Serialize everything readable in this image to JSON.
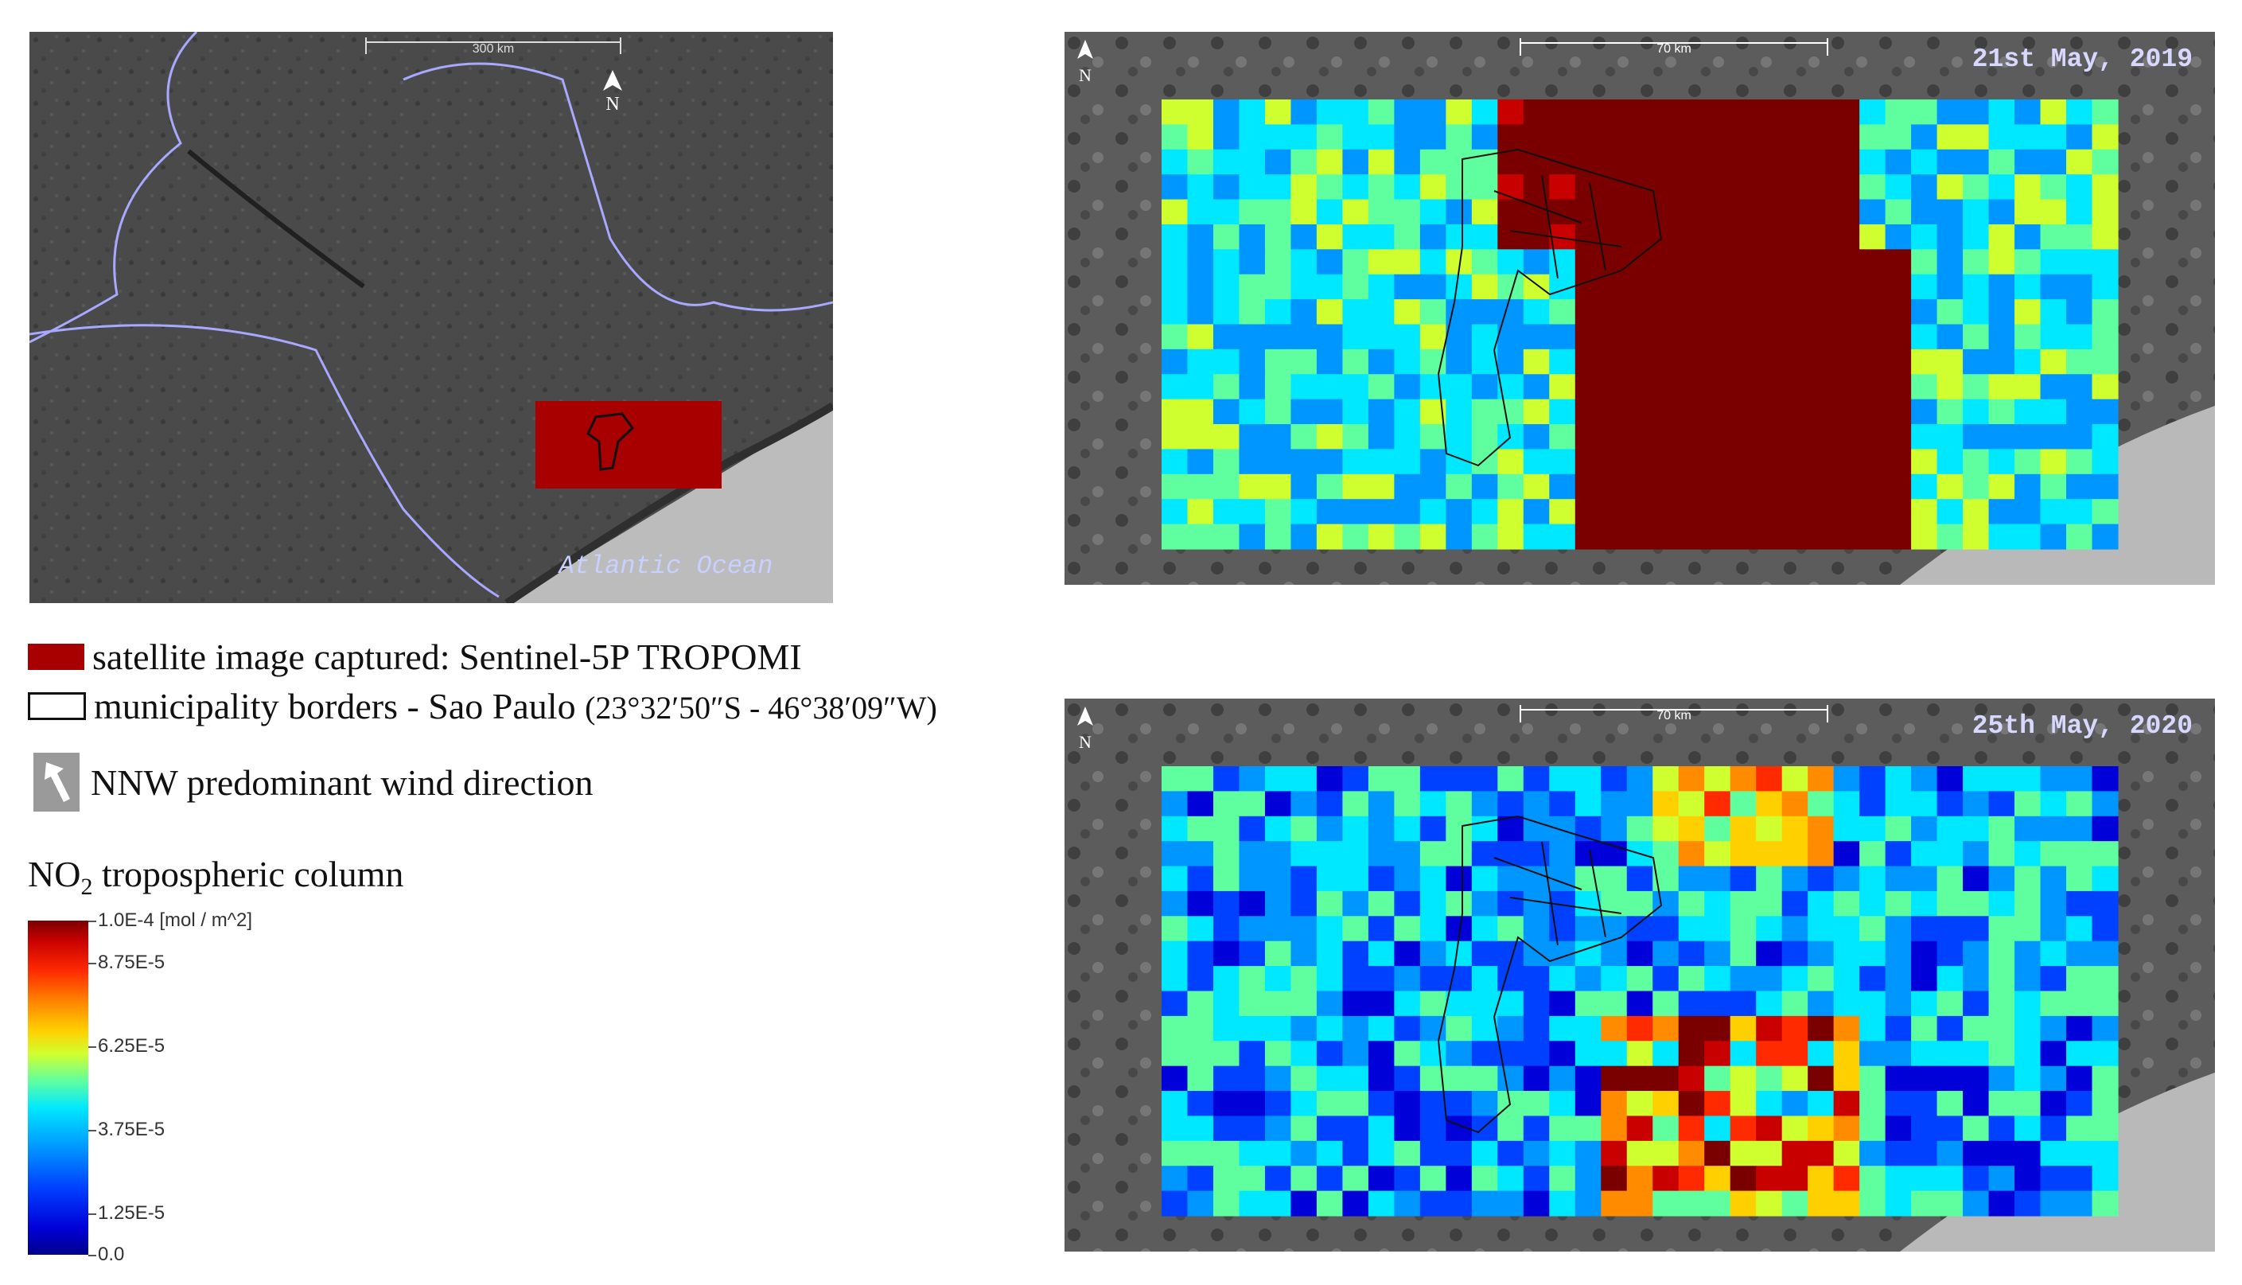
{
  "overview_map": {
    "scale_label": "300 km",
    "north_label": "N",
    "ocean_label": "Atlantic Ocean"
  },
  "map_2019": {
    "date_label": "21st May, 2019",
    "scale_label": "70 km",
    "north_label": "N",
    "pattern": "high-north-and-south-east"
  },
  "map_2020": {
    "date_label": "25th May, 2020",
    "scale_label": "70 km",
    "north_label": "N",
    "pattern": "lower-mixed"
  },
  "legend": {
    "satellite_label": "satellite image captured: Sentinel-5P TROPOMI",
    "municipality_label": "municipality borders - Sao Paulo",
    "municipality_coords": "(23°32′50″S - 46°38′09″W)",
    "wind_label": "NNW predominant wind direction",
    "satellite_color": "#a80000"
  },
  "colorbar": {
    "title_main": "NO",
    "title_sub": "2",
    "title_rest": " tropospheric column",
    "ticks": [
      {
        "label": "1.0E-4 [mol / m^2]",
        "value": 0.0001
      },
      {
        "label": "8.75E-5",
        "value": 8.75e-05
      },
      {
        "label": "6.25E-5",
        "value": 6.25e-05
      },
      {
        "label": "3.75E-5",
        "value": 3.75e-05
      },
      {
        "label": "1.25E-5",
        "value": 1.25e-05
      },
      {
        "label": "0.0",
        "value": 0.0
      }
    ]
  }
}
